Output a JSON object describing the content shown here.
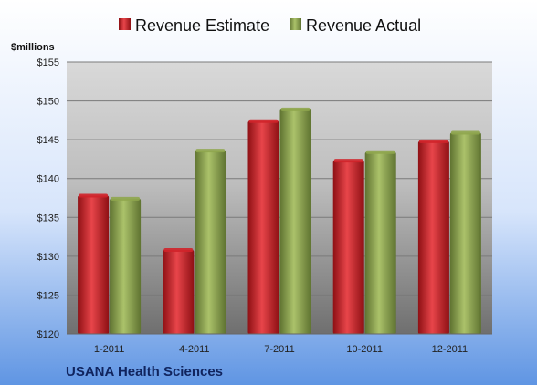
{
  "chart_data": {
    "type": "bar",
    "categories": [
      "1-2011",
      "4-2011",
      "7-2011",
      "10-2011",
      "12-2011"
    ],
    "series": [
      {
        "name": "Revenue Estimate",
        "color": "#d0232a",
        "values": [
          137.8,
          130.8,
          147.4,
          142.3,
          144.8
        ]
      },
      {
        "name": "Revenue Actual",
        "color": "#8fa64e",
        "values": [
          137.4,
          143.6,
          148.9,
          143.4,
          145.9
        ]
      }
    ],
    "ylabel": "$millions",
    "ylim": [
      120,
      155
    ],
    "yticks": [
      "$120",
      "$125",
      "$130",
      "$135",
      "$140",
      "$145",
      "$150",
      "$155"
    ],
    "ytick_values": [
      120,
      125,
      130,
      135,
      140,
      145,
      150,
      155
    ],
    "grid": true,
    "legend_position": "top",
    "footer": "USANA Health Sciences"
  }
}
